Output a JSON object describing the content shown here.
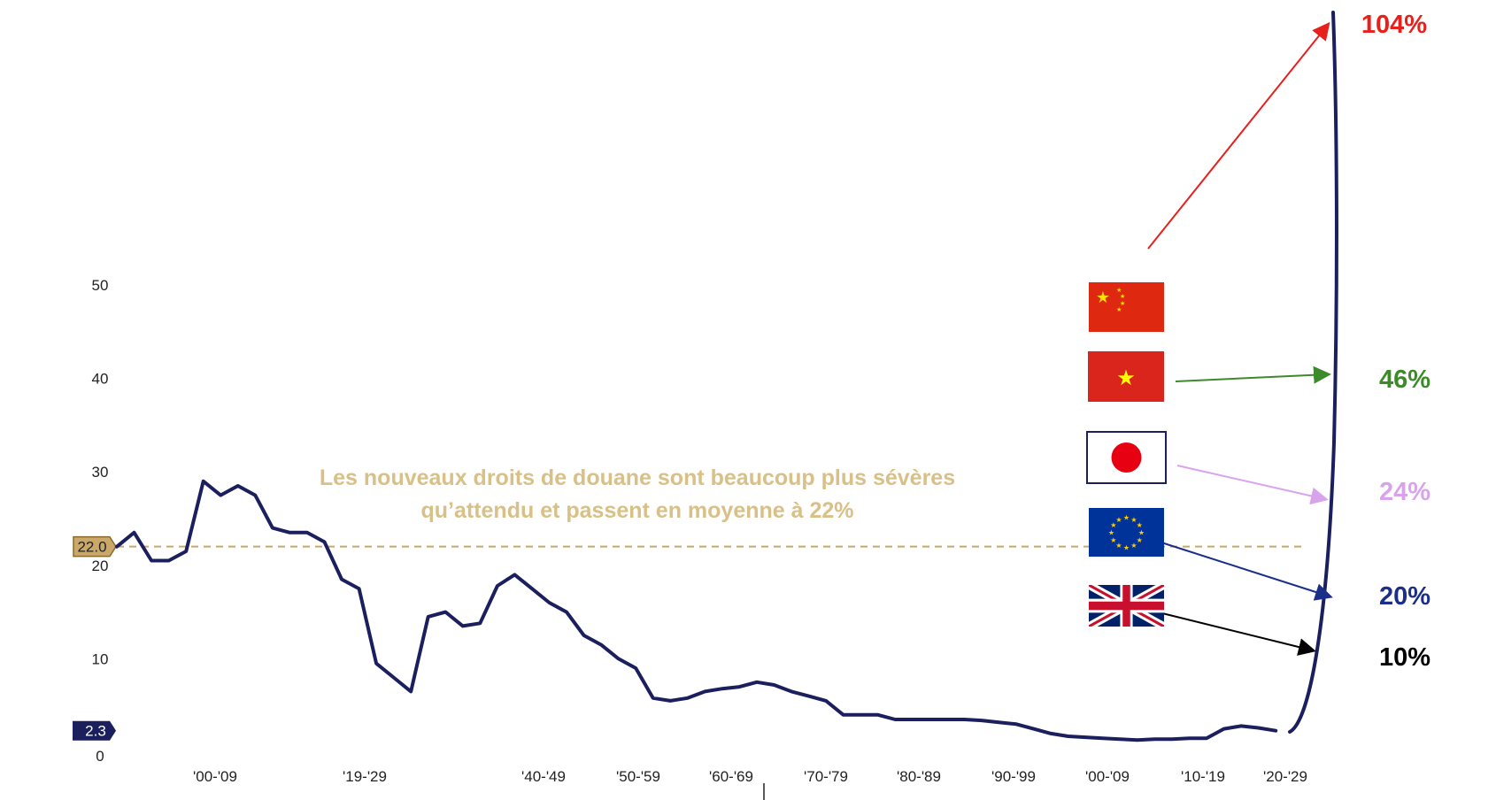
{
  "chart_data": {
    "type": "line",
    "title": "",
    "xlabel": "",
    "ylabel": "",
    "ylim": [
      0,
      50
    ],
    "y_ticks": [
      0,
      10,
      20,
      30,
      40,
      50
    ],
    "x_tick_labels": [
      "'00-'09",
      "'19-'29",
      "'40-'49",
      "'50-'59",
      "'60-'69",
      "'70-'79",
      "'80-'89",
      "'90-'99",
      "'00-'09",
      "'10-'19",
      "'20-'29"
    ],
    "grid": false,
    "legend": "none",
    "series": [
      {
        "color": "#1b1f5e",
        "x": [
          1890,
          1892,
          1894,
          1896,
          1898,
          1900,
          1902,
          1904,
          1906,
          1908,
          1910,
          1912,
          1914,
          1916,
          1918,
          1920,
          1922,
          1924,
          1926,
          1928,
          1930,
          1932,
          1934,
          1936,
          1938,
          1940,
          1942,
          1944,
          1946,
          1948,
          1950,
          1952,
          1954,
          1956,
          1958,
          1960,
          1962,
          1964,
          1966,
          1968,
          1970,
          1972,
          1974,
          1976,
          1978,
          1980,
          1982,
          1984,
          1986,
          1988,
          1990,
          1992,
          1994,
          1996,
          1998,
          2000,
          2002,
          2004,
          2006,
          2008,
          2010,
          2012,
          2014,
          2016,
          2018,
          2020,
          2022,
          2024
        ],
        "values": [
          22.0,
          23.5,
          20.5,
          20.5,
          21.5,
          29.0,
          27.5,
          28.5,
          27.5,
          24.0,
          23.5,
          23.5,
          22.5,
          18.5,
          17.5,
          9.5,
          8.0,
          6.5,
          14.5,
          15.0,
          13.5,
          13.8,
          17.8,
          19.0,
          17.5,
          16.0,
          15.0,
          12.5,
          11.5,
          10.0,
          9.0,
          5.8,
          5.5,
          5.8,
          6.5,
          6.8,
          7.0,
          7.5,
          7.2,
          6.5,
          6.0,
          5.5,
          4.0,
          4.0,
          4.0,
          3.5,
          3.5,
          3.5,
          3.5,
          3.5,
          3.4,
          3.2,
          3.0,
          2.5,
          2.0,
          1.7,
          1.6,
          1.5,
          1.4,
          1.3,
          1.4,
          1.4,
          1.5,
          1.5,
          2.5,
          2.8,
          2.6,
          2.3
        ]
      }
    ],
    "reference_line": {
      "value": 22.0,
      "label": "22.0",
      "color": "#c9a86a"
    },
    "last_value_badge": {
      "value": 2.3,
      "label": "2.3",
      "color": "#1b1f5e"
    },
    "annotation": {
      "line1": "Les nouveaux droits de douane sont beaucoup plus sévères",
      "line2": "qu’attendu et passent en moyenne à 22%",
      "color": "#d8c087"
    },
    "country_tariffs": [
      {
        "flag": "china-flag-icon",
        "label": "104%",
        "color": "#e8201b"
      },
      {
        "flag": "vietnam-flag-icon",
        "label": "46%",
        "color": "#3d8a2b"
      },
      {
        "flag": "japan-flag-icon",
        "label": "24%",
        "color": "#d9a3ec"
      },
      {
        "flag": "eu-flag-icon",
        "label": "20%",
        "color": "#1b2f8a"
      },
      {
        "flag": "uk-flag-icon",
        "label": "10%",
        "color": "#000000"
      }
    ]
  }
}
